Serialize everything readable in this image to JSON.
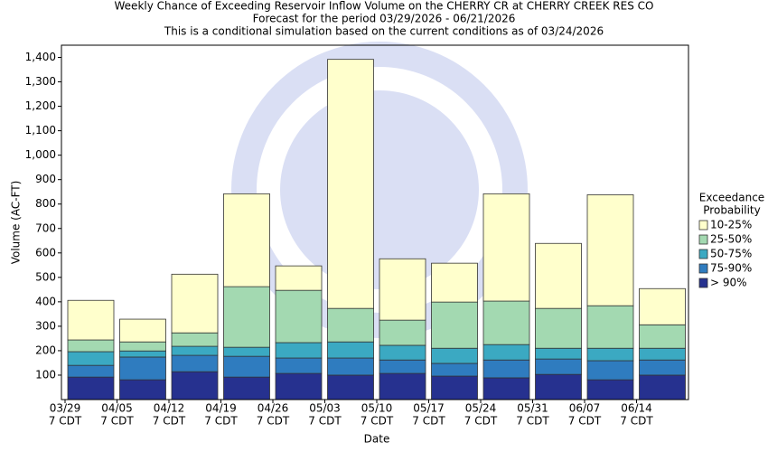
{
  "chart_data": {
    "type": "stacked_bar",
    "title": [
      "Weekly Chance of Exceeding Reservoir Inflow Volume on the CHERRY CR at CHERRY CREEK RES CO",
      "Forecast for the period 03/29/2026 - 06/21/2026",
      "This is a conditional simulation based on the current conditions as of 03/24/2026"
    ],
    "x_label": "Date",
    "y_label": "Volume (AC-FT)",
    "categories": [
      null,
      null,
      null,
      null,
      null,
      null,
      null,
      null,
      null,
      null,
      null,
      null
    ],
    "x_tick_labels": [
      [
        "03/29",
        "7 CDT"
      ],
      [
        "04/05",
        "7 CDT"
      ],
      [
        "04/12",
        "7 CDT"
      ],
      [
        "04/19",
        "7 CDT"
      ],
      [
        "04/26",
        "7 CDT"
      ],
      [
        "05/03",
        "7 CDT"
      ],
      [
        "05/10",
        "7 CDT"
      ],
      [
        "05/17",
        "7 CDT"
      ],
      [
        "05/24",
        "7 CDT"
      ],
      [
        "05/31",
        "7 CDT"
      ],
      [
        "06/07",
        "7 CDT"
      ],
      [
        "06/14",
        "7 CDT"
      ]
    ],
    "ylim": [
      0,
      1450
    ],
    "yticks": [
      100,
      200,
      300,
      400,
      500,
      600,
      700,
      800,
      900,
      {
        "value": 1000,
        "label": "1,000"
      },
      {
        "value": 1100,
        "label": "1,100"
      },
      {
        "value": 1200,
        "label": "1,200"
      },
      {
        "value": 1300,
        "label": "1,300"
      },
      {
        "value": 1400,
        "label": "1,400"
      }
    ],
    "legend_title": [
      "Exceedance",
      "Probability"
    ],
    "legend_position": "right",
    "series": [
      {
        "name": "> 90%",
        "color": "#26318f",
        "values": [
          92,
          81,
          114,
          92,
          107,
          100,
          107,
          96,
          89,
          103,
          81,
          100
        ]
      },
      {
        "name": "75-90%",
        "color": "#2f7cbf",
        "values": [
          48,
          93,
          67,
          85,
          63,
          70,
          55,
          52,
          73,
          63,
          78,
          62
        ]
      },
      {
        "name": "50-75%",
        "color": "#3ba9c2",
        "values": [
          56,
          25,
          37,
          37,
          63,
          66,
          60,
          62,
          63,
          44,
          51,
          48
        ]
      },
      {
        "name": "25-50%",
        "color": "#a3d9b1",
        "values": [
          48,
          37,
          55,
          248,
          214,
          137,
          103,
          189,
          178,
          163,
          174,
          96
        ]
      },
      {
        "name": "10-25%",
        "color": "#ffffcc",
        "values": [
          162,
          93,
          240,
          380,
          100,
          1019,
          251,
          159,
          439,
          266,
          454,
          148
        ]
      }
    ]
  }
}
